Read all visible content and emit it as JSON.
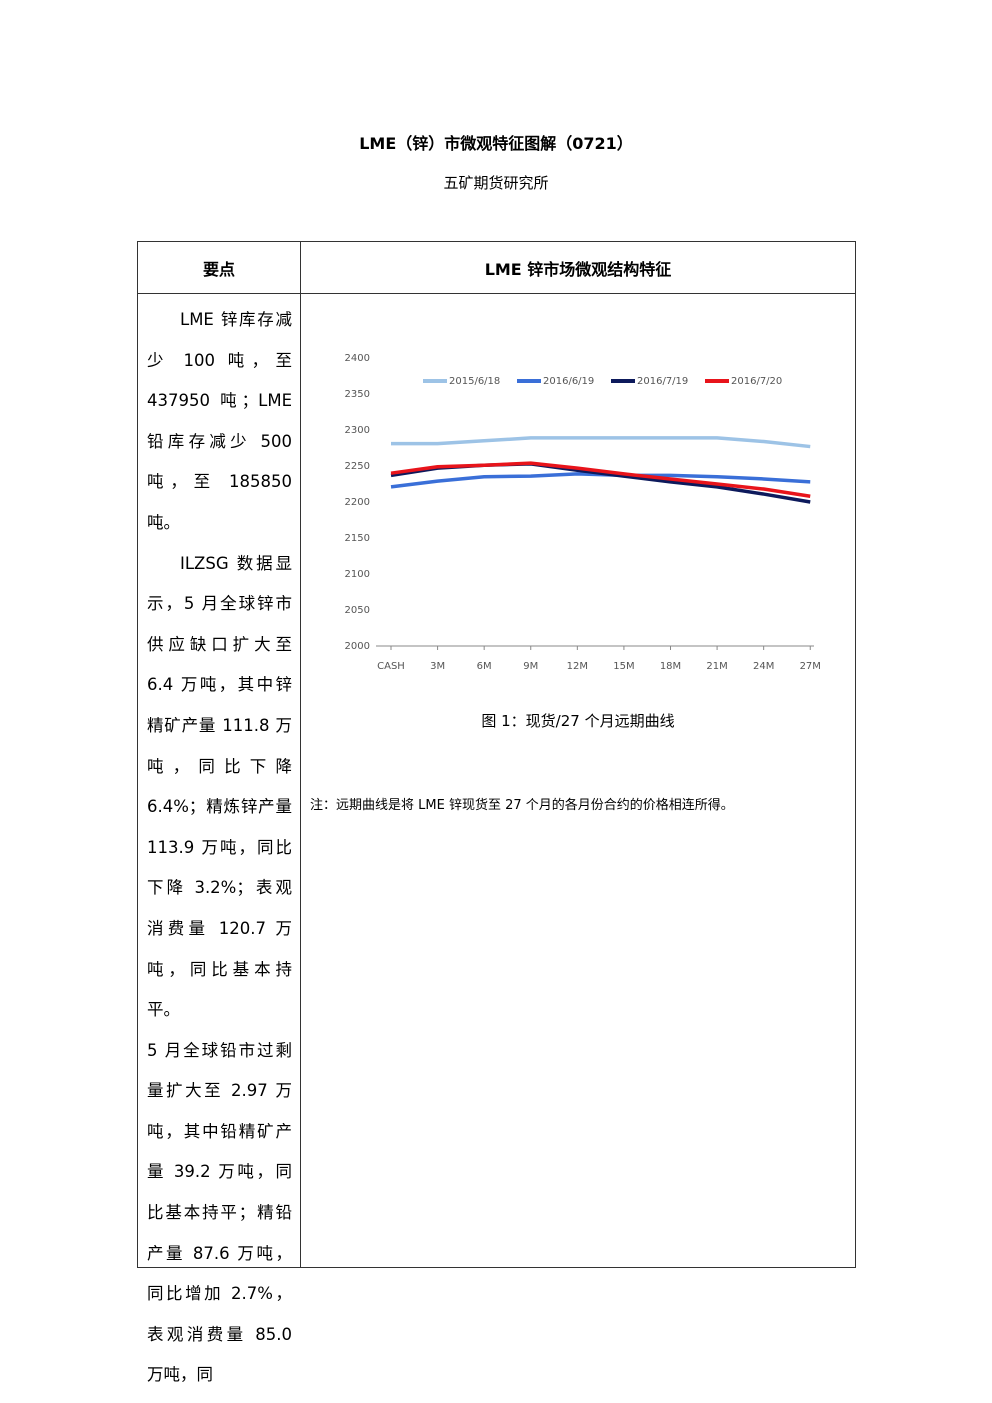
{
  "header": {
    "title": "LME（锌）市微观特征图解（0721）",
    "subtitle": "五矿期货研究所"
  },
  "table": {
    "headers": [
      "要点",
      "LME 锌市场微观结构特征"
    ],
    "left_paragraphs": [
      "LME 锌库存减少 100 吨，至 437950 吨；LME 铅库存减少 500 吨，至 185850 吨。",
      "ILZSG 数据显示，5 月全球锌市供应缺口扩大至 6.4 万吨，其中锌精矿产量 111.8 万吨，同比下降 6.4%；精炼锌产量 113.9 万吨，同比下降 3.2%；表观消费量 120.7 万吨，同比基本持平。",
      "5 月全球铅市过剩量扩大至 2.97 万吨，其中铅精矿产量 39.2 万吨，同比基本持平；精铅产量 87.6 万吨，同比增加 2.7%，表观消费量 85.0 万吨，同"
    ]
  },
  "chart_data": {
    "type": "line",
    "categories": [
      "CASH",
      "3M",
      "6M",
      "9M",
      "12M",
      "15M",
      "18M",
      "21M",
      "24M",
      "27M"
    ],
    "series": [
      {
        "name": "2015/6/18",
        "color": "#9dc3e6",
        "values": [
          2281,
          2281,
          2285,
          2289,
          2289,
          2289,
          2289,
          2289,
          2284,
          2277
        ]
      },
      {
        "name": "2016/6/19",
        "color": "#3a6fd8",
        "values": [
          2221,
          2229,
          2235,
          2236,
          2239,
          2237,
          2237,
          2235,
          2232,
          2228
        ]
      },
      {
        "name": "2016/7/19",
        "color": "#0d1a5c",
        "values": [
          2237,
          2247,
          2251,
          2253,
          2244,
          2236,
          2228,
          2221,
          2211,
          2200
        ]
      },
      {
        "name": "2016/7/20",
        "color": "#e8141b",
        "values": [
          2240,
          2249,
          2251,
          2254,
          2247,
          2239,
          2232,
          2225,
          2218,
          2208
        ]
      }
    ],
    "ylim": [
      2000,
      2400
    ],
    "yticks": [
      2000,
      2050,
      2100,
      2150,
      2200,
      2250,
      2300,
      2350,
      2400
    ],
    "legend": "top"
  },
  "caption": "图 1：现货/27 个月远期曲线",
  "note": "注：远期曲线是将 LME 锌现货至 27 个月的各月份合约的价格相连所得。"
}
